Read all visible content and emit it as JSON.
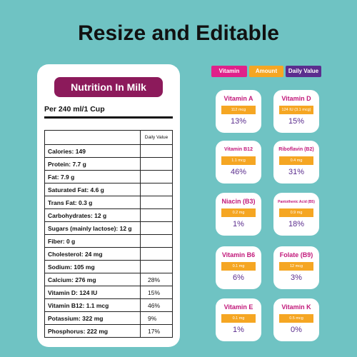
{
  "title": "Resize and Editable",
  "card": {
    "title": "Nutrition In Milk",
    "serving": "Per 240 ml/1 Cup",
    "daily_value_header": "Daily Value",
    "rows": [
      {
        "name": "Calories: 149",
        "dv": ""
      },
      {
        "name": "Protein: 7.7 g",
        "dv": ""
      },
      {
        "name": "Fat: 7.9 g",
        "dv": ""
      },
      {
        "name": "Saturated Fat: 4.6 g",
        "dv": ""
      },
      {
        "name": "Trans Fat: 0.3 g",
        "dv": ""
      },
      {
        "name": "Carbohydrates: 12 g",
        "dv": ""
      },
      {
        "name": "Sugars (mainly lactose): 12 g",
        "dv": ""
      },
      {
        "name": "Fiber: 0 g",
        "dv": ""
      },
      {
        "name": "Cholesterol: 24 mg",
        "dv": ""
      },
      {
        "name": "Sodium: 105 mg",
        "dv": ""
      },
      {
        "name": "Calcium: 276 mg",
        "dv": "28%"
      },
      {
        "name": "Vitamin D: 124 IU",
        "dv": "15%"
      },
      {
        "name": "Vitamin B12: 1.1 mcg",
        "dv": "46%"
      },
      {
        "name": "Potassium: 322 mg",
        "dv": "9%"
      },
      {
        "name": "Phosphorus: 222 mg",
        "dv": "17%"
      }
    ]
  },
  "legend": {
    "vitamin": "Vitamin",
    "amount": "Amount",
    "daily_value": "Daily Value"
  },
  "vitamins": [
    {
      "name": "Vitamin A",
      "amount": "112 mcg",
      "pct": "13%"
    },
    {
      "name": "Vitamin D",
      "amount": "124 IU (3.1 mcg)",
      "pct": "15%"
    },
    {
      "name": "Vitamin B12",
      "amount": "1.1 mcg",
      "pct": "46%"
    },
    {
      "name": "Riboflavin (B2)",
      "amount": "0.4 mg",
      "pct": "31%"
    },
    {
      "name": "Niacin (B3)",
      "amount": "0.2 mg",
      "pct": "1%"
    },
    {
      "name": "Pantothenic Acid (B5)",
      "amount": "0.9 mg",
      "pct": "18%"
    },
    {
      "name": "Vitamin B6",
      "amount": "0.1 mg",
      "pct": "6%"
    },
    {
      "name": "Folate (B9)",
      "amount": "12 mcg",
      "pct": "3%"
    },
    {
      "name": "Vitamin E",
      "amount": "0.1 mg",
      "pct": "1%"
    },
    {
      "name": "Vitamin K",
      "amount": "0.5 mcg",
      "pct": "0%"
    }
  ]
}
